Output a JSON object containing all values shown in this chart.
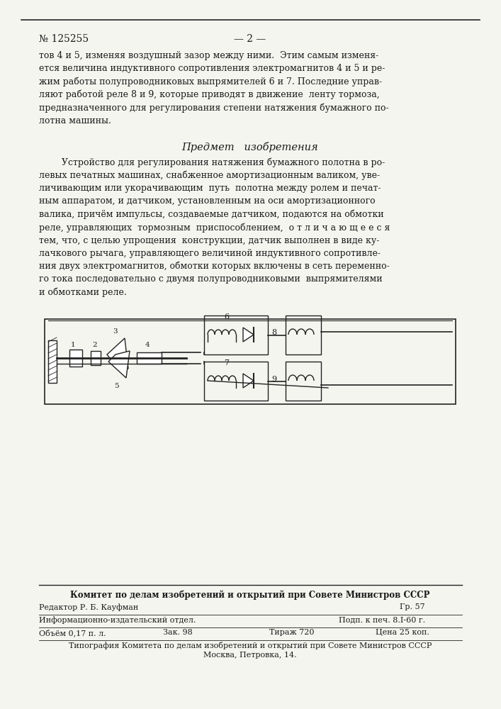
{
  "patent_number": "№ 125255",
  "page_number": "— 2 —",
  "bg_color": "#f5f5f0",
  "text_color": "#1a1a1a",
  "top_line_text": "тов 4 и 5, изменяя воздушный зазор между ними.  Этим самым изменя-\nется величина индуктивного сопротивления электромагнитов 4 и 5 и ре-\nжим работы полупроводниковых выпрямителей 6 и 7. Последние управ-\nляют работой реле 8 и 9, которые приводят в движение  ленту тормоза,\nпредназначенного для регулирования степени натяжения бумажного по-\nлотна машины.",
  "section_title": "Предмет   изобретения",
  "main_text": "        Устройство для регулирования натяжения бумажного полотна в ро-\nлевых печатных машинах, снабженное амортизационным валиком, уве-\nличивающим или укорачивающим  путь  полотна между ролем и печат-\nным аппаратом, и датчиком, установленным на оси амортизационного\nвалика, причём импульсы, создаваемые датчиком, подаются на обмотки\nреле, управляющих  тормозным  приспособлением,  о т л и ч а ю щ е е с я\nтем, что, с целью упрощения  конструкции, датчик выполнен в виде ку-\nлачкового рычага, управляющего величиной индуктивного сопротивле-\nния двух электромагнитов, обмотки которых включены в сеть переменно-\nго тока последовательно с двумя полупроводниковыми  выпрямителями\nи обмотками реле.",
  "footer_committee": "Комитет по делам изобретений и открытий при Совете Министров СССР",
  "footer_editor": "Редактор Р. Б. Кауфман",
  "footer_gr": "Гр. 57",
  "footer_info": "Информационно-издательский отдел.",
  "footer_podp": "Подп. к печ. 8.I-60 г.",
  "footer_obem": "Объём 0,17 п. л.",
  "footer_zak": "Зак. 98",
  "footer_tirazh": "Тираж 720",
  "footer_tsena": "Цена 25 коп.",
  "footer_tipografiya": "Типография Комитета по делам изобретений и открытий при Совете Министров СССР",
  "footer_moskva": "Москва, Петровка, 14.",
  "border_color": "#333333",
  "line_color": "#222222"
}
